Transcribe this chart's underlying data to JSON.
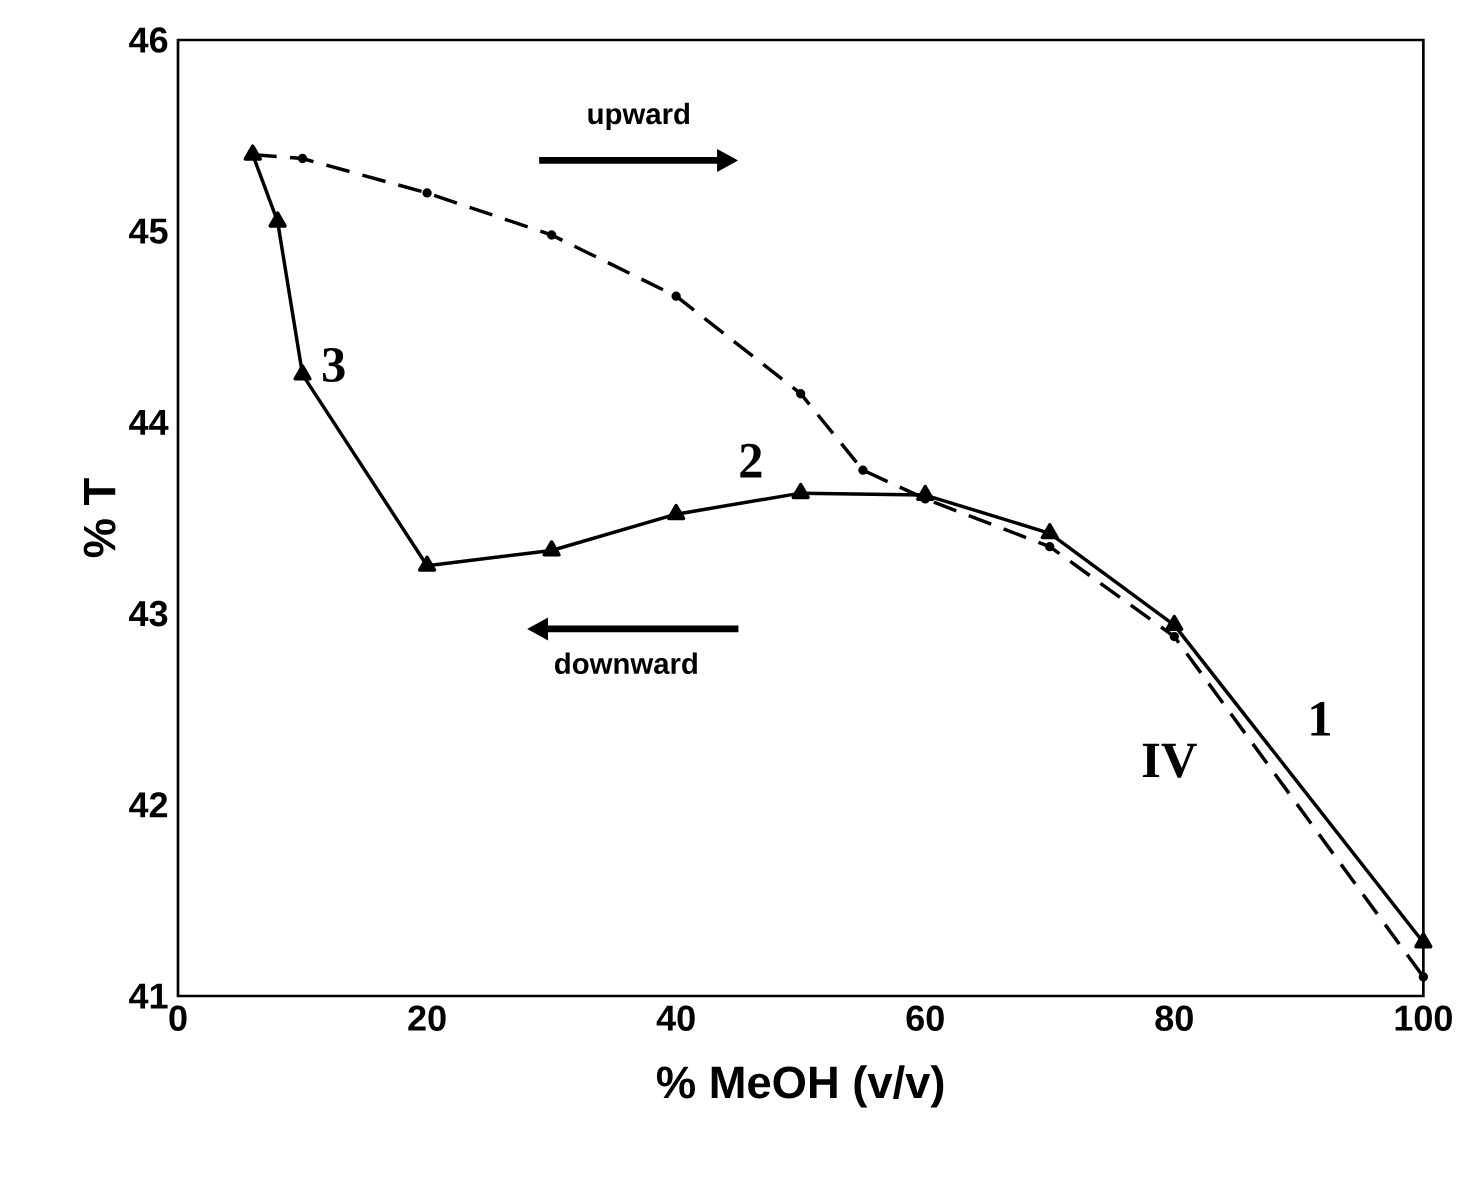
{
  "chart_data": {
    "type": "line",
    "xlabel": "% MeOH (v/v)",
    "ylabel": "% T",
    "xlim": [
      0,
      100
    ],
    "ylim": [
      41,
      46
    ],
    "xticks": [
      0,
      20,
      40,
      60,
      80,
      100
    ],
    "yticks": [
      41,
      42,
      43,
      44,
      45,
      46
    ],
    "grid": false,
    "series": [
      {
        "color": "#000000",
        "marker": "triangle",
        "line_style": "solid",
        "x": [
          6,
          8,
          10,
          20,
          30,
          40,
          50,
          60,
          70,
          80,
          100
        ],
        "values": [
          45.4,
          45.05,
          44.25,
          43.25,
          43.33,
          43.52,
          43.63,
          43.62,
          43.42,
          42.94,
          41.28
        ]
      },
      {
        "color": "#000000",
        "marker": "circle",
        "line_style": "dashed",
        "x": [
          6,
          10,
          20,
          30,
          40,
          50,
          55,
          60,
          70,
          80,
          100
        ],
        "values": [
          45.4,
          45.38,
          45.2,
          44.98,
          44.66,
          44.15,
          43.75,
          43.6,
          43.35,
          42.88,
          41.1
        ]
      }
    ],
    "annotations": [
      "upward",
      "downward",
      "3",
      "2",
      "1",
      "IV"
    ]
  }
}
